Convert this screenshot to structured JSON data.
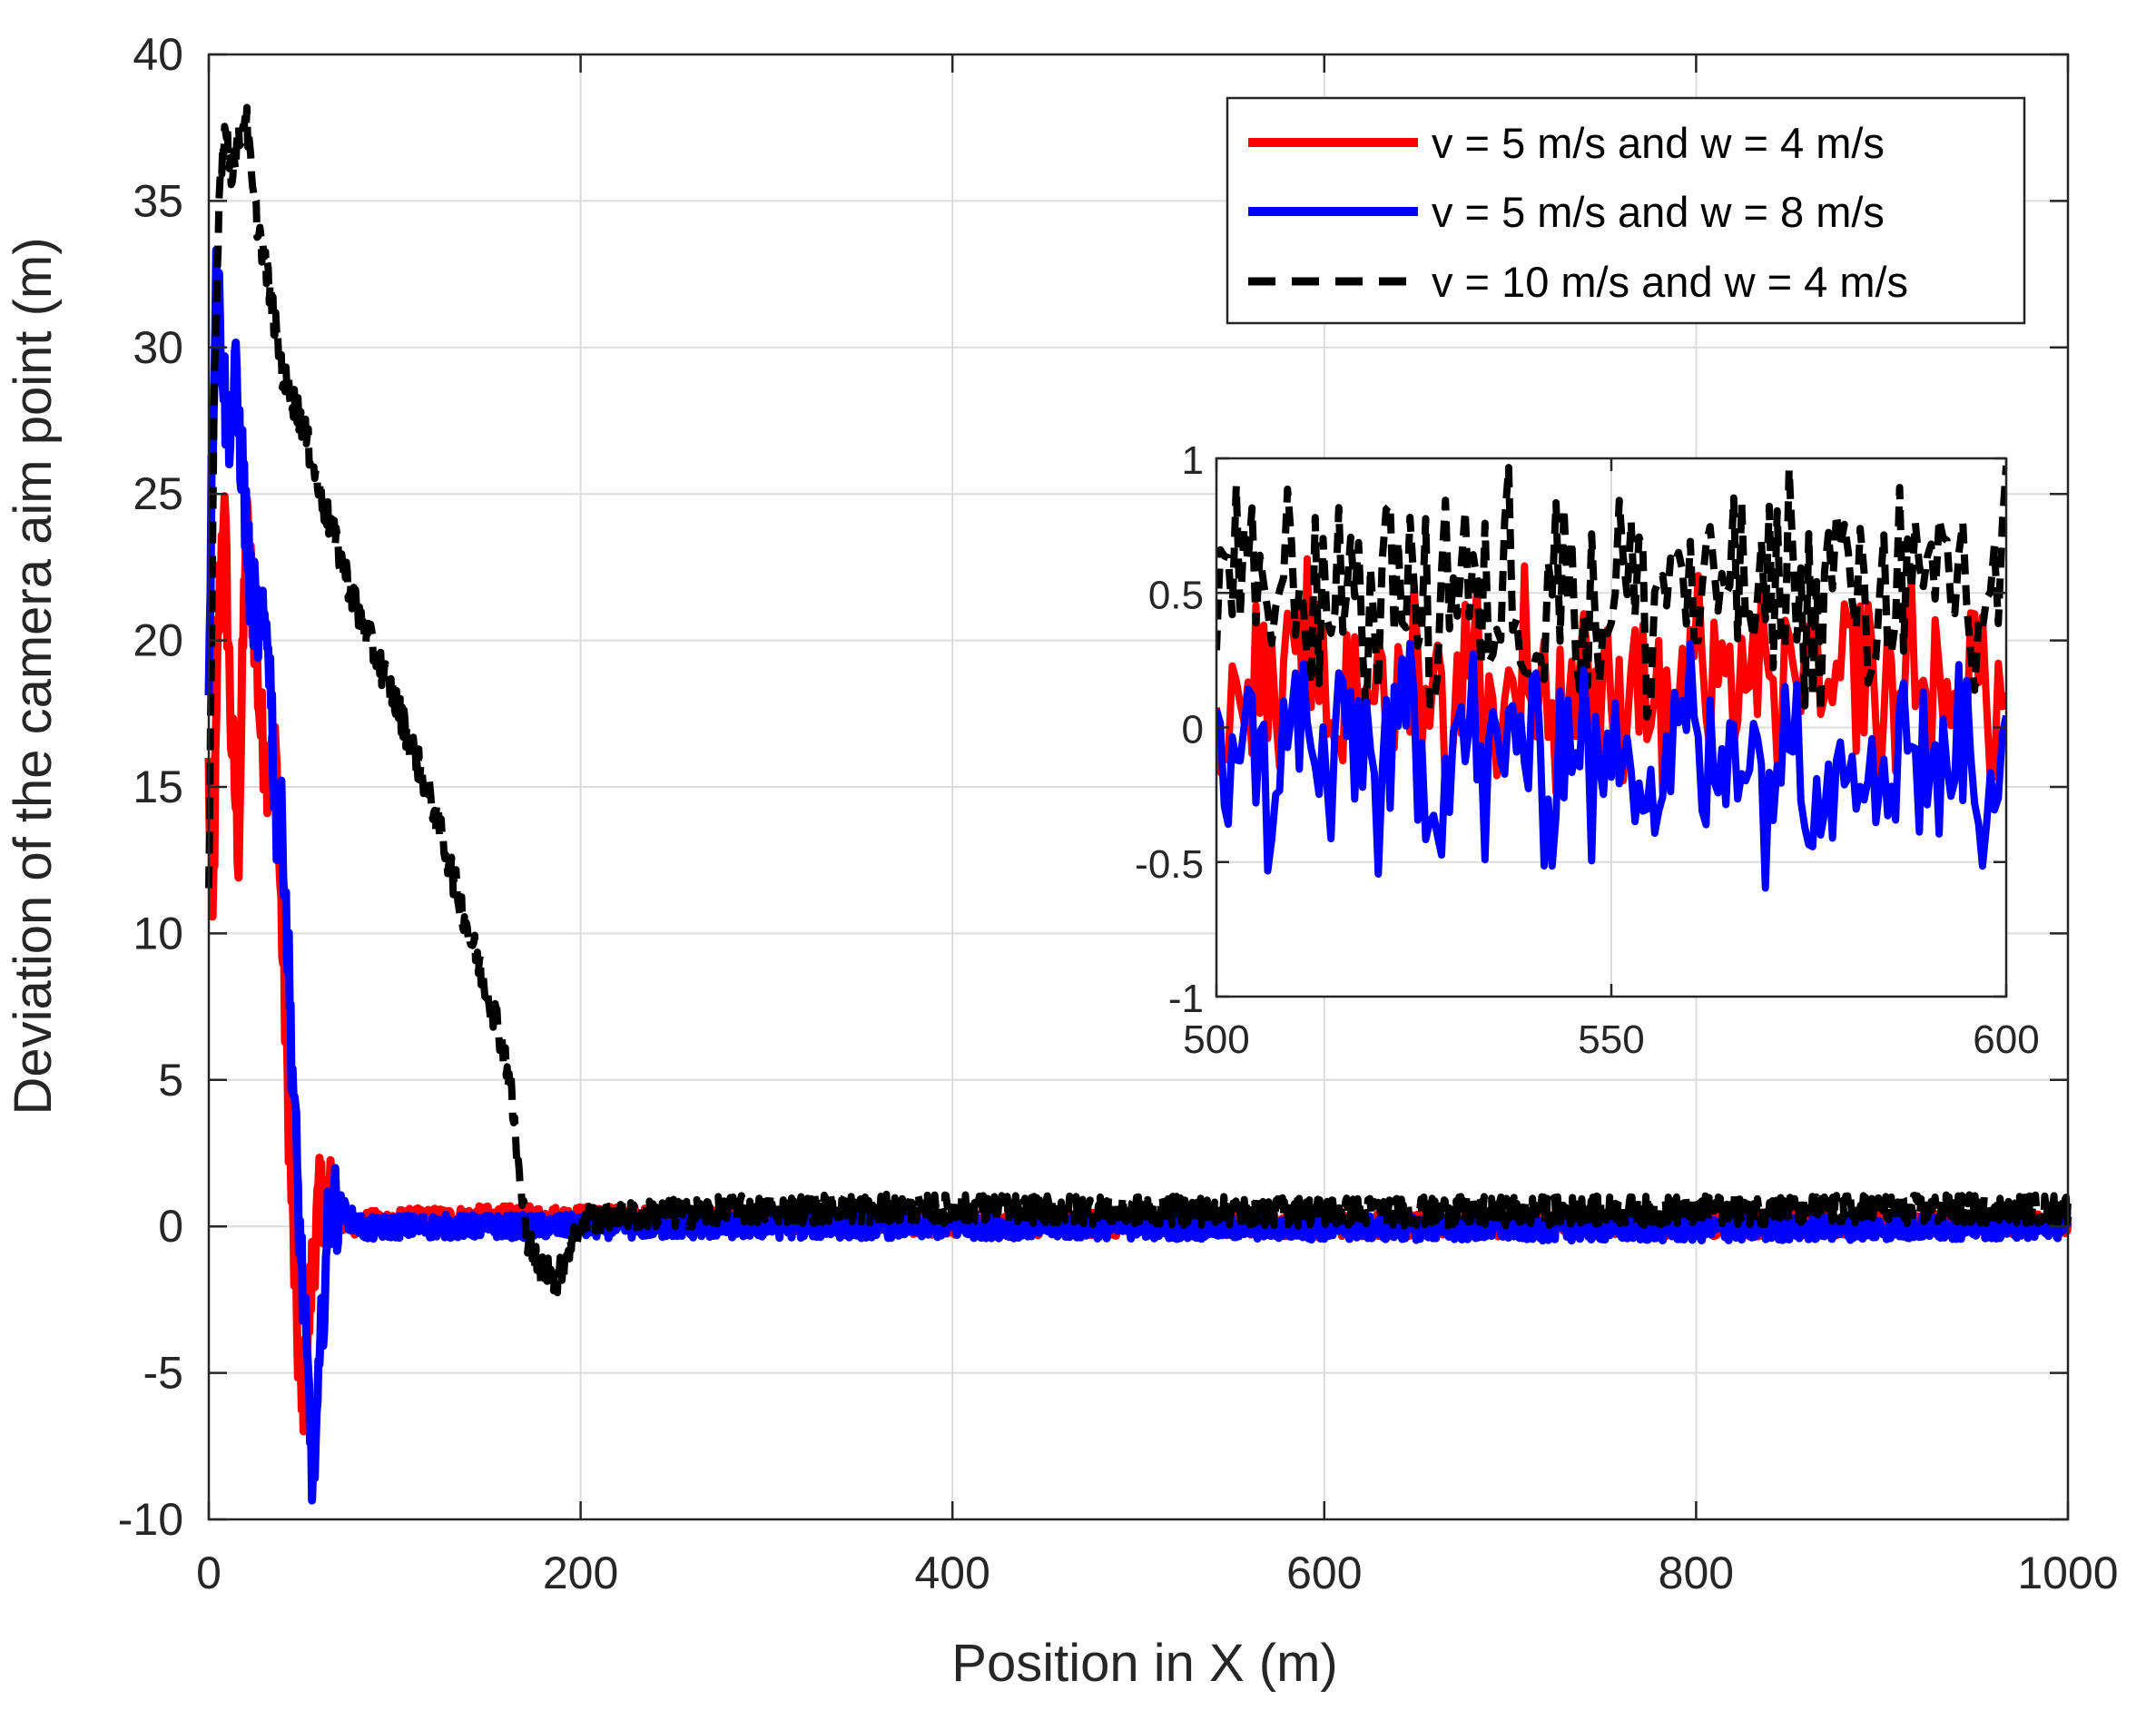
{
  "chart_data": [
    {
      "type": "line",
      "role": "main",
      "xlabel": "Position in X (m)",
      "ylabel": "Deviation of the camera aim point (m)",
      "xlim": [
        0,
        1000
      ],
      "ylim": [
        -10,
        40
      ],
      "xticks": [
        0,
        200,
        400,
        600,
        800,
        1000
      ],
      "yticks": [
        -10,
        -5,
        0,
        5,
        10,
        15,
        20,
        25,
        30,
        35,
        40
      ],
      "xtick_labels": [
        "0",
        "200",
        "400",
        "600",
        "800",
        "1000"
      ],
      "ytick_labels": [
        "-10",
        "-5",
        "0",
        "5",
        "10",
        "15",
        "20",
        "25",
        "30",
        "35",
        "40"
      ],
      "grid": true,
      "legend_position": "top-right",
      "series": [
        {
          "name": "v = 5 m/s and w = 4 m/s",
          "color": "#ff0000",
          "style": "solid",
          "keypoints": [
            [
              0,
              15.5
            ],
            [
              2,
              10
            ],
            [
              5,
              20
            ],
            [
              8,
              25
            ],
            [
              12,
              17
            ],
            [
              16,
              13
            ],
            [
              20,
              24
            ],
            [
              24,
              21
            ],
            [
              28,
              17
            ],
            [
              32,
              15.5
            ],
            [
              36,
              16
            ],
            [
              40,
              9
            ],
            [
              44,
              2
            ],
            [
              47,
              -3
            ],
            [
              50,
              -6.5
            ],
            [
              53,
              -4
            ],
            [
              56,
              -1
            ],
            [
              60,
              1
            ],
            [
              65,
              1
            ],
            [
              70,
              0.2
            ],
            [
              80,
              0.1
            ],
            [
              100,
              0.2
            ],
            [
              150,
              0.3
            ],
            [
              200,
              0.3
            ],
            [
              400,
              0.1
            ],
            [
              600,
              0.05
            ],
            [
              800,
              0.05
            ],
            [
              1000,
              0.1
            ]
          ],
          "noise_amplitude": 0.4
        },
        {
          "name": "v = 5 m/s and w = 8 m/s",
          "color": "#0000ff",
          "style": "solid",
          "keypoints": [
            [
              0,
              19
            ],
            [
              2,
              27
            ],
            [
              4,
              33
            ],
            [
              7,
              30
            ],
            [
              10,
              27
            ],
            [
              14,
              29
            ],
            [
              18,
              26
            ],
            [
              22,
              22
            ],
            [
              28,
              20
            ],
            [
              32,
              20.5
            ],
            [
              36,
              14
            ],
            [
              40,
              13.5
            ],
            [
              44,
              7
            ],
            [
              48,
              1
            ],
            [
              52,
              -4
            ],
            [
              56,
              -8.5
            ],
            [
              59,
              -6
            ],
            [
              62,
              -2
            ],
            [
              65,
              0.5
            ],
            [
              70,
              0.8
            ],
            [
              75,
              0.3
            ],
            [
              85,
              -0.1
            ],
            [
              100,
              0
            ],
            [
              200,
              0
            ],
            [
              400,
              0
            ],
            [
              600,
              -0.05
            ],
            [
              800,
              -0.1
            ],
            [
              1000,
              0
            ]
          ],
          "noise_amplitude": 0.4
        },
        {
          "name": "v = 10 m/s and w = 4 m/s",
          "color": "#000000",
          "style": "dashed",
          "keypoints": [
            [
              0,
              11
            ],
            [
              3,
              29
            ],
            [
              6,
              36
            ],
            [
              9,
              37.5
            ],
            [
              12,
              36
            ],
            [
              16,
              37
            ],
            [
              20,
              38
            ],
            [
              24,
              35
            ],
            [
              30,
              33
            ],
            [
              40,
              29
            ],
            [
              50,
              27.5
            ],
            [
              60,
              25
            ],
            [
              80,
              21
            ],
            [
              100,
              18
            ],
            [
              120,
              14.5
            ],
            [
              140,
              10
            ],
            [
              155,
              7
            ],
            [
              162,
              5
            ],
            [
              168,
              1
            ],
            [
              172,
              -0.5
            ],
            [
              176,
              -1.2
            ],
            [
              182,
              -1.5
            ],
            [
              188,
              -1.8
            ],
            [
              195,
              -0.5
            ],
            [
              205,
              0.3
            ],
            [
              300,
              0.6
            ],
            [
              400,
              0.6
            ],
            [
              500,
              0.55
            ],
            [
              600,
              0.5
            ],
            [
              800,
              0.55
            ],
            [
              1000,
              0.6
            ]
          ],
          "noise_amplitude": 0.5
        }
      ]
    },
    {
      "type": "line",
      "role": "inset",
      "xlim": [
        500,
        600
      ],
      "ylim": [
        -1,
        1
      ],
      "xticks": [
        500,
        550,
        600
      ],
      "yticks": [
        -1,
        -0.5,
        0,
        0.5,
        1
      ],
      "xtick_labels": [
        "500",
        "550",
        "600"
      ],
      "ytick_labels": [
        "-1",
        "-0.5",
        "0",
        "0.5",
        "1"
      ],
      "grid": true,
      "series": [
        {
          "name": "v = 5 m/s and w = 4 m/s",
          "color": "#ff0000",
          "style": "solid",
          "mean": 0.15,
          "noise_amplitude": 0.3
        },
        {
          "name": "v = 5 m/s and w = 8 m/s",
          "color": "#0000ff",
          "style": "solid",
          "mean": -0.1,
          "noise_amplitude": 0.3
        },
        {
          "name": "v = 10 m/s and w = 4 m/s",
          "color": "#000000",
          "style": "dashed",
          "mean": 0.5,
          "noise_amplitude": 0.35
        }
      ]
    }
  ]
}
